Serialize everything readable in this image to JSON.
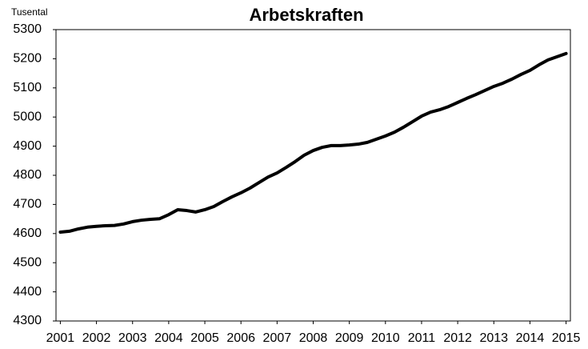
{
  "chart_data": {
    "type": "line",
    "title": "Arbetskraften",
    "y_label": "Tusental",
    "x": [
      2001,
      2001.25,
      2001.5,
      2001.75,
      2002,
      2002.25,
      2002.5,
      2002.75,
      2003,
      2003.25,
      2003.5,
      2003.75,
      2004,
      2004.25,
      2004.5,
      2004.75,
      2005,
      2005.25,
      2005.5,
      2005.75,
      2006,
      2006.25,
      2006.5,
      2006.75,
      2007,
      2007.25,
      2007.5,
      2007.75,
      2008,
      2008.25,
      2008.5,
      2008.75,
      2009,
      2009.25,
      2009.5,
      2009.75,
      2010,
      2010.25,
      2010.5,
      2010.75,
      2011,
      2011.25,
      2011.5,
      2011.75,
      2012,
      2012.25,
      2012.5,
      2012.75,
      2013,
      2013.25,
      2013.5,
      2013.75,
      2014,
      2014.25,
      2014.5,
      2014.75,
      2015
    ],
    "series": [
      {
        "name": "Arbetskraften",
        "color": "#000000",
        "values": [
          4605,
          4608,
          4616,
          4622,
          4625,
          4627,
          4628,
          4633,
          4641,
          4646,
          4649,
          4651,
          4665,
          4682,
          4679,
          4674,
          4682,
          4693,
          4710,
          4726,
          4740,
          4756,
          4775,
          4794,
          4808,
          4827,
          4847,
          4869,
          4885,
          4896,
          4902,
          4902,
          4904,
          4907,
          4913,
          4924,
          4935,
          4948,
          4965,
          4984,
          5003,
          5017,
          5025,
          5036,
          5050,
          5064,
          5077,
          5091,
          5105,
          5116,
          5130,
          5146,
          5160,
          5179,
          5196,
          5207,
          5218
        ]
      }
    ],
    "xlim": [
      2000.88,
      2015.12
    ],
    "xticks": [
      2001,
      2002,
      2003,
      2004,
      2005,
      2006,
      2007,
      2008,
      2009,
      2010,
      2011,
      2012,
      2013,
      2014,
      2015
    ],
    "ylim": [
      4300,
      5300
    ],
    "yticks": [
      4300,
      4400,
      4500,
      4600,
      4700,
      4800,
      4900,
      5000,
      5100,
      5200,
      5300
    ],
    "grid": false
  }
}
